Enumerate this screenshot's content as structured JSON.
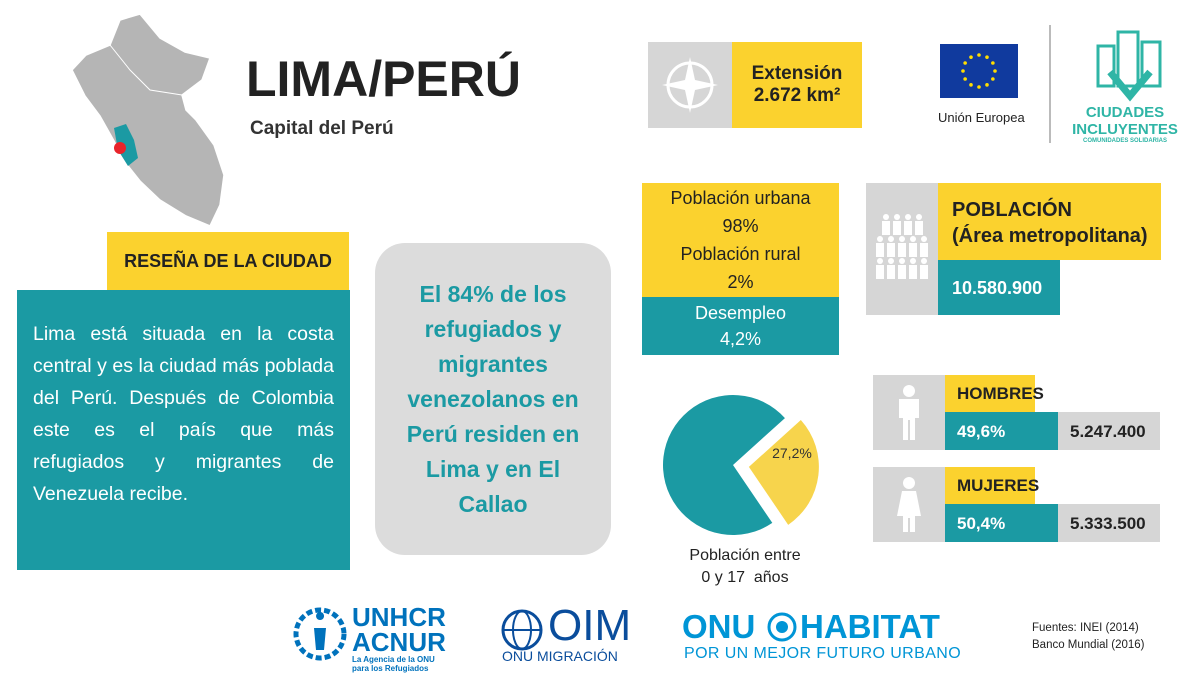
{
  "header": {
    "title": "LIMA/PERÚ",
    "subtitle": "Capital del Perú"
  },
  "extension": {
    "label": "Extensión",
    "value": "2.672 km²"
  },
  "partners": {
    "eu": "Unión Europea",
    "ciudades": [
      "CIUDADES",
      "INCLUYENTES",
      "COMUNIDADES SOLIDARIAS"
    ]
  },
  "review": {
    "heading": "RESEÑA DE LA CIUDAD",
    "text": "Lima está situada en la costa central y es la ciudad más poblada del Perú. Después de Colombia este es el país que más refugiados y migrantes de Venezuela recibe."
  },
  "highlight": "El 84% de los refugiados y migrantes venezolanos en Perú residen en Lima y en El Callao",
  "stats": {
    "urban_label": "Población urbana",
    "urban": "98%",
    "rural_label": "Población rural",
    "rural": "2%",
    "unemployment_label": "Desempleo",
    "unemployment": "4,2%"
  },
  "pie": {
    "value": 27.2,
    "value_label": "27,2%",
    "caption": [
      "Población entre",
      "0 y 17  años"
    ]
  },
  "population": {
    "heading": "POBLACIÓN",
    "subheading": "(Área metropolitana)",
    "total": "10.580.900"
  },
  "men": {
    "label": "HOMBRES",
    "share": "49,6%",
    "count": "5.247.400"
  },
  "women": {
    "label": "MUJERES",
    "share": "50,4%",
    "count": "5.333.500"
  },
  "footer": {
    "unhcr": "UNHCR",
    "acnur": "ACNUR",
    "acnur_tag": [
      "La Agencia de la ONU",
      "para los Refugiados"
    ],
    "oim": "OIM",
    "oim_sub": "ONU MIGRACIÓN",
    "onu": "ONU",
    "habitat": "HABITAT",
    "habitat_tag": "POR UN MEJOR FUTURO URBANO",
    "sources": [
      "Fuentes: INEI (2014)",
      "Banco Mundial (2016)"
    ]
  }
}
